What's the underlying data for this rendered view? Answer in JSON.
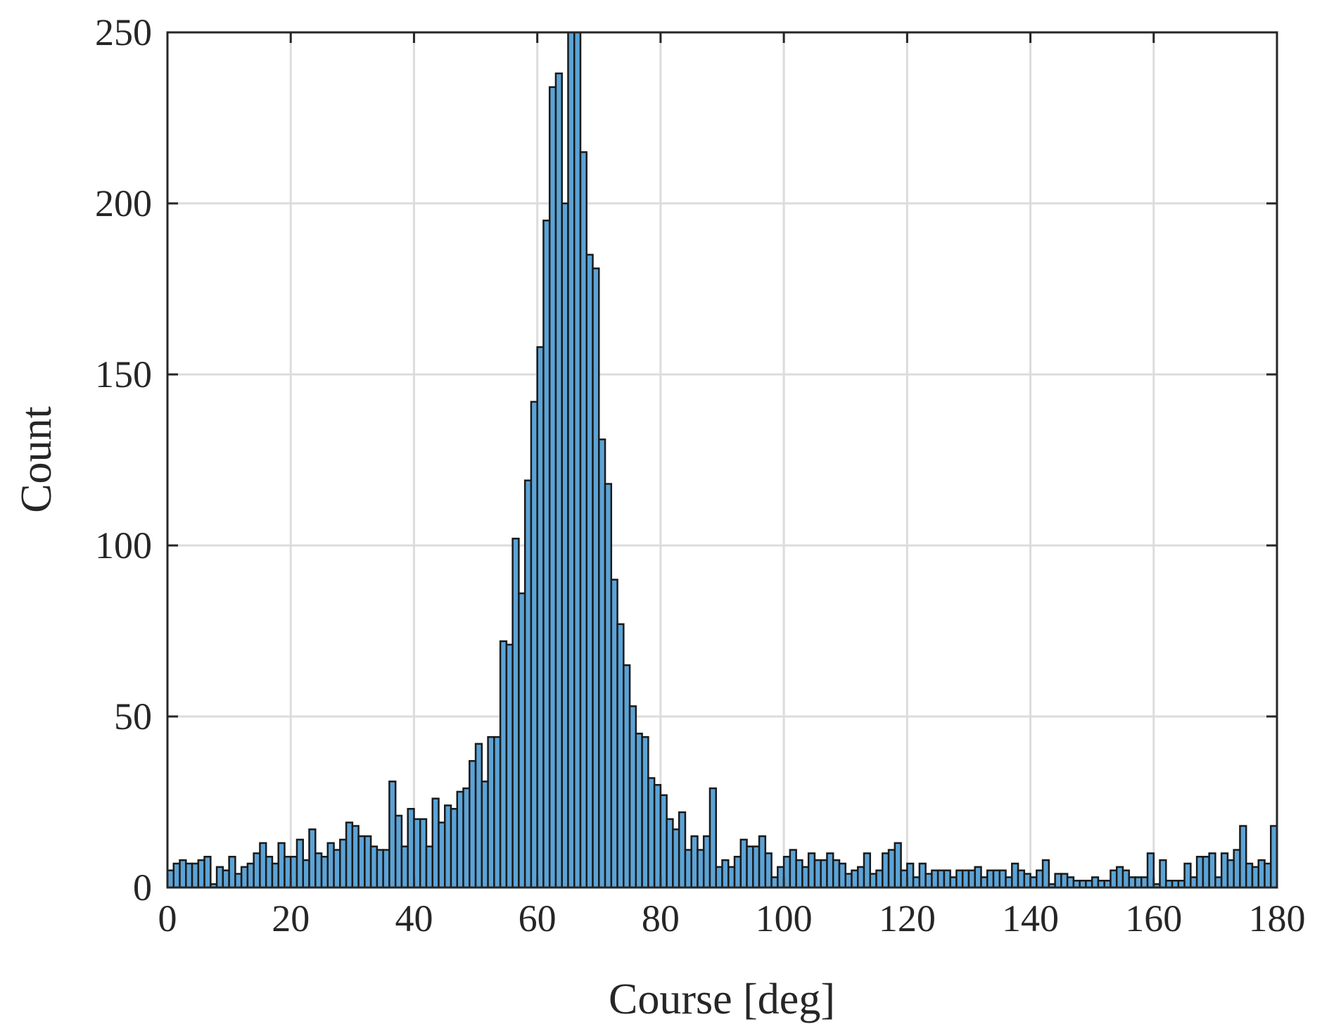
{
  "chart_data": {
    "type": "histogram",
    "x_label": "Course [deg]",
    "y_label": "Count",
    "bins": [
      0,
      1,
      2,
      3,
      4,
      5,
      6,
      7,
      8,
      9,
      10,
      11,
      12,
      13,
      14,
      15,
      16,
      17,
      18,
      19,
      20,
      21,
      22,
      23,
      24,
      25,
      26,
      27,
      28,
      29,
      30,
      31,
      32,
      33,
      34,
      35,
      36,
      37,
      38,
      39,
      40,
      41,
      42,
      43,
      44,
      45,
      46,
      47,
      48,
      49,
      50,
      51,
      52,
      53,
      54,
      55,
      56,
      57,
      58,
      59,
      60,
      61,
      62,
      63,
      64,
      65,
      66,
      67,
      68,
      69,
      70,
      71,
      72,
      73,
      74,
      75,
      76,
      77,
      78,
      79,
      80,
      81,
      82,
      83,
      84,
      85,
      86,
      87,
      88,
      89,
      90,
      91,
      92,
      93,
      94,
      95,
      96,
      97,
      98,
      99,
      100,
      101,
      102,
      103,
      104,
      105,
      106,
      107,
      108,
      109,
      110,
      111,
      112,
      113,
      114,
      115,
      116,
      117,
      118,
      119,
      120,
      121,
      122,
      123,
      124,
      125,
      126,
      127,
      128,
      129,
      130,
      131,
      132,
      133,
      134,
      135,
      136,
      137,
      138,
      139,
      140,
      141,
      142,
      143,
      144,
      145,
      146,
      147,
      148,
      149,
      150,
      151,
      152,
      153,
      154,
      155,
      156,
      157,
      158,
      159,
      160,
      161,
      162,
      163,
      164,
      165,
      166,
      167,
      168,
      169,
      170,
      171,
      172,
      173,
      174,
      175,
      176,
      177,
      178,
      179,
      180
    ],
    "counts": [
      5,
      7,
      8,
      7,
      7,
      8,
      9,
      1,
      6,
      5,
      9,
      4,
      6,
      7,
      10,
      13,
      9,
      7,
      13,
      9,
      9,
      14,
      8,
      17,
      10,
      9,
      13,
      11,
      14,
      19,
      18,
      15,
      15,
      12,
      11,
      11,
      31,
      21,
      12,
      23,
      20,
      20,
      12,
      26,
      19,
      24,
      23,
      28,
      29,
      37,
      42,
      31,
      44,
      44,
      72,
      71,
      102,
      86,
      119,
      142,
      158,
      195,
      234,
      238,
      200,
      250,
      250,
      215,
      185,
      181,
      131,
      118,
      90,
      77,
      65,
      53,
      45,
      44,
      32,
      30,
      27,
      20,
      17,
      22,
      11,
      15,
      11,
      15,
      29,
      6,
      8,
      6,
      9,
      14,
      12,
      12,
      15,
      10,
      3,
      6,
      9,
      11,
      8,
      6,
      10,
      8,
      8,
      10,
      8,
      7,
      4,
      5,
      6,
      10,
      4,
      5,
      10,
      11,
      13,
      5,
      7,
      3,
      7,
      4,
      5,
      5,
      5,
      3,
      5,
      5,
      5,
      6,
      3,
      5,
      5,
      5,
      3,
      7,
      5,
      4,
      3,
      5,
      8,
      1,
      4,
      4,
      3,
      2,
      2,
      2,
      3,
      2,
      2,
      5,
      6,
      5,
      3,
      3,
      3,
      10,
      1,
      8,
      2,
      2,
      2,
      7,
      3,
      9,
      9,
      10,
      3,
      10,
      8,
      11,
      18,
      7,
      6,
      8,
      7,
      18
    ],
    "color": "#5ba3d6",
    "edgecolor": "#1a1a1a",
    "xlim": [
      0,
      180
    ],
    "xticks": [
      0,
      20,
      40,
      60,
      80,
      100,
      120,
      140,
      160,
      180
    ],
    "ylim": [
      0,
      250
    ],
    "yticks": [
      0,
      50,
      100,
      150,
      200,
      250
    ],
    "grid": true
  }
}
